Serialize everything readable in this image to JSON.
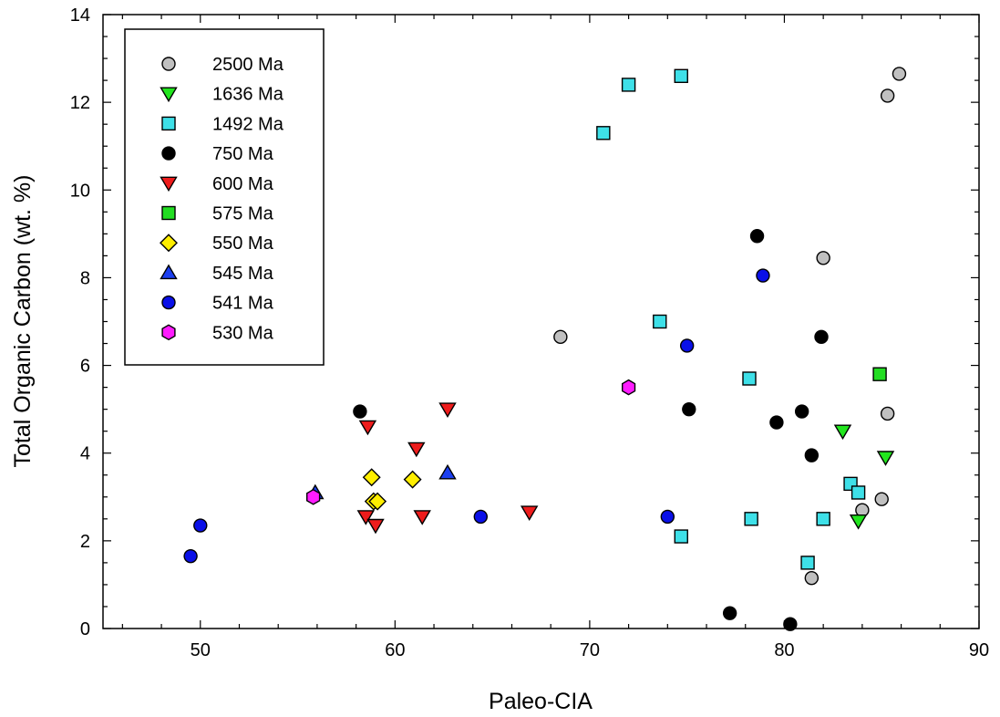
{
  "chart_data": {
    "type": "scatter",
    "title": "",
    "xlabel": "Paleo-CIA",
    "ylabel": "Total Organic Carbon (wt. %)",
    "xlim": [
      45,
      90
    ],
    "ylim": [
      0,
      14
    ],
    "x_ticks": [
      50,
      60,
      70,
      80,
      90
    ],
    "y_ticks": [
      0,
      2,
      4,
      6,
      8,
      10,
      12,
      14
    ],
    "x_tick_labels": [
      "50",
      "60",
      "70",
      "80",
      "90"
    ],
    "y_tick_labels": [
      "0",
      "2",
      "4",
      "6",
      "8",
      "10",
      "12",
      "14"
    ],
    "grid": false,
    "legend_position": "top-left",
    "series": [
      {
        "name": "2500 Ma",
        "marker": "circle",
        "color": "#c0c0c0",
        "points": [
          [
            85.9,
            12.65
          ],
          [
            85.3,
            12.15
          ],
          [
            82.0,
            8.45
          ],
          [
            68.5,
            6.65
          ],
          [
            85.3,
            4.9
          ],
          [
            85.0,
            2.95
          ],
          [
            84.0,
            2.7
          ],
          [
            81.4,
            1.15
          ]
        ]
      },
      {
        "name": "1636 Ma",
        "marker": "triangle-down",
        "color": "#22e61e",
        "points": [
          [
            83.0,
            4.5
          ],
          [
            85.2,
            3.9
          ],
          [
            83.8,
            2.45
          ]
        ]
      },
      {
        "name": "1492 Ma",
        "marker": "square",
        "color": "#3ee0e8",
        "points": [
          [
            74.7,
            12.6
          ],
          [
            72.0,
            12.4
          ],
          [
            70.7,
            11.3
          ],
          [
            73.6,
            7.0
          ],
          [
            78.2,
            5.7
          ],
          [
            83.4,
            3.3
          ],
          [
            83.8,
            3.1
          ],
          [
            78.3,
            2.5
          ],
          [
            82.0,
            2.5
          ],
          [
            74.7,
            2.1
          ],
          [
            81.2,
            1.5
          ]
        ]
      },
      {
        "name": "750 Ma",
        "marker": "circle",
        "color": "#000000",
        "points": [
          [
            78.6,
            8.95
          ],
          [
            81.9,
            6.65
          ],
          [
            75.1,
            5.0
          ],
          [
            58.2,
            4.95
          ],
          [
            80.9,
            4.95
          ],
          [
            79.6,
            4.7
          ],
          [
            81.4,
            3.95
          ],
          [
            77.2,
            0.35
          ],
          [
            80.3,
            0.1
          ]
        ]
      },
      {
        "name": "600 Ma",
        "marker": "triangle-down",
        "color": "#ee1c1c",
        "points": [
          [
            62.7,
            5.0
          ],
          [
            58.6,
            4.6
          ],
          [
            61.1,
            4.1
          ],
          [
            58.5,
            2.55
          ],
          [
            59.0,
            2.35
          ],
          [
            61.4,
            2.55
          ],
          [
            66.9,
            2.65
          ]
        ]
      },
      {
        "name": "575 Ma",
        "marker": "square",
        "color": "#22dd22",
        "points": [
          [
            84.9,
            5.8
          ]
        ]
      },
      {
        "name": "550 Ma",
        "marker": "diamond",
        "color": "#ffee00",
        "points": [
          [
            58.8,
            3.45
          ],
          [
            60.9,
            3.4
          ],
          [
            58.9,
            2.9
          ],
          [
            59.1,
            2.9
          ]
        ]
      },
      {
        "name": "545 Ma",
        "marker": "triangle-up",
        "color": "#1c3ff0",
        "points": [
          [
            62.7,
            3.55
          ],
          [
            55.9,
            3.1
          ]
        ]
      },
      {
        "name": "541 Ma",
        "marker": "circle",
        "color": "#0a10e8",
        "points": [
          [
            78.9,
            8.05
          ],
          [
            75.0,
            6.45
          ],
          [
            50.0,
            2.35
          ],
          [
            64.4,
            2.55
          ],
          [
            74.0,
            2.55
          ],
          [
            49.5,
            1.65
          ]
        ]
      },
      {
        "name": "530 Ma",
        "marker": "hexagon",
        "color": "#ff1cff",
        "points": [
          [
            72.0,
            5.5
          ],
          [
            55.8,
            3.0
          ]
        ]
      }
    ]
  }
}
